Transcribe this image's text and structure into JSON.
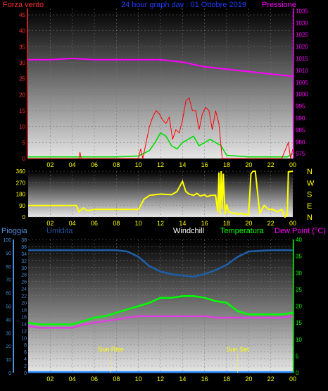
{
  "header": {
    "left_label": "Forza vento",
    "title": "24 hour graph day : 01 Ottobre 2019",
    "right_label": "Pressione"
  },
  "colors": {
    "wind": "#ff0000",
    "gust": "#00dd00",
    "pressure": "#ff00ff",
    "direction": "#ffff00",
    "humidity": "#1f5fa8",
    "temperature": "#00ff00",
    "dewpoint": "#e040e0",
    "rain": "#2f8fff",
    "windchill": "#ffffff",
    "left_axis": "#ff3030",
    "right_axis": "#ff00ff",
    "bottom_left_axis": "#4f8fd8",
    "bottom_right_axis": "#00ff00",
    "text": "#ffff00"
  },
  "x_ticks": [
    "02",
    "04",
    "06",
    "08",
    "10",
    "12",
    "14",
    "16",
    "18",
    "20",
    "22",
    "00"
  ],
  "chart_data": [
    {
      "type": "line",
      "name_hint": "wind-pressure",
      "y_left": {
        "ticks": [
          0,
          5,
          10,
          15,
          20,
          25,
          30,
          35,
          40,
          45
        ],
        "range": [
          0,
          47
        ]
      },
      "y_right": {
        "ticks": [
          975,
          980,
          985,
          990,
          995,
          1000,
          1005,
          1010,
          1015,
          1020,
          1025,
          1030,
          1035
        ],
        "range": [
          973,
          1036
        ]
      },
      "x_range": [
        0,
        24
      ],
      "series": [
        {
          "key": "pressure",
          "axis": "right",
          "x": [
            0,
            2,
            4,
            6,
            8,
            10,
            12,
            14,
            16,
            18,
            20,
            22,
            24
          ],
          "y": [
            1014.5,
            1014.5,
            1015,
            1014.5,
            1014.5,
            1014.5,
            1014.5,
            1013.5,
            1011.5,
            1010.5,
            1009.5,
            1008.5,
            1007.5
          ]
        },
        {
          "key": "gust",
          "axis": "left",
          "x": [
            0,
            4,
            8,
            10,
            11,
            11.5,
            12,
            12.5,
            13,
            13.5,
            14,
            14.5,
            15,
            15.5,
            16,
            16.5,
            17,
            17.5,
            18,
            20,
            22,
            23,
            23.5,
            24
          ],
          "y": [
            0.5,
            0.5,
            0.5,
            0.8,
            2.5,
            5,
            8,
            7,
            4,
            3,
            5,
            6,
            7,
            4,
            5,
            6,
            5,
            4,
            1,
            0.5,
            0.5,
            0.5,
            0.5,
            1.5
          ]
        },
        {
          "key": "wind",
          "axis": "left",
          "x": [
            0,
            4.6,
            4.7,
            4.8,
            8,
            10,
            10.2,
            10.4,
            11,
            11.3,
            11.6,
            11.9,
            12.2,
            12.5,
            12.8,
            13.1,
            13.4,
            13.7,
            14,
            14.3,
            14.6,
            14.9,
            15.2,
            15.5,
            15.8,
            16.1,
            16.4,
            16.7,
            17,
            17.3,
            17.6,
            18,
            20,
            22,
            23,
            23.6,
            23.8,
            24
          ],
          "y": [
            0,
            0,
            2,
            0,
            0,
            0,
            3,
            0,
            10,
            13,
            15,
            14,
            12,
            11,
            13,
            6,
            9,
            8,
            12,
            18,
            19,
            15,
            15,
            9,
            14,
            16,
            15,
            9,
            15,
            11,
            0,
            0,
            0,
            0,
            0,
            5,
            0,
            3
          ]
        }
      ]
    },
    {
      "type": "line",
      "name_hint": "wind-direction",
      "y_left": {
        "ticks": [
          0,
          90,
          180,
          270,
          360
        ],
        "range": [
          0,
          360
        ]
      },
      "compass": [
        "N",
        "W",
        "S",
        "E",
        "N"
      ],
      "x_range": [
        0,
        24
      ],
      "series": [
        {
          "key": "direction",
          "x": [
            0,
            4.4,
            4.6,
            5,
            5.4,
            6,
            10,
            10.2,
            10.5,
            11,
            12,
            13,
            13.5,
            14,
            14.3,
            14.6,
            15,
            15.3,
            15.6,
            16,
            16.2,
            16.6,
            17,
            17.2,
            17.3,
            17.4,
            17.5,
            17.6,
            17.7,
            17.8,
            17.9,
            18,
            18.2,
            18.5,
            18.8,
            19,
            19.3,
            19.6,
            20,
            20.2,
            20.4,
            20.6,
            21,
            21.4,
            21.8,
            22.2,
            22.6,
            23,
            23.3,
            23.5,
            23.6,
            24
          ],
          "y": [
            90,
            90,
            40,
            70,
            50,
            60,
            60,
            90,
            140,
            170,
            180,
            175,
            200,
            280,
            200,
            180,
            170,
            185,
            165,
            175,
            160,
            170,
            170,
            40,
            350,
            20,
            360,
            60,
            340,
            120,
            20,
            100,
            40,
            30,
            30,
            20,
            30,
            20,
            20,
            340,
            360,
            360,
            30,
            90,
            60,
            60,
            40,
            60,
            0,
            20,
            355,
            360
          ]
        }
      ]
    },
    {
      "type": "line",
      "name_hint": "temperature-humidity",
      "y_outer_left": {
        "ticks": [
          0,
          10,
          20,
          30,
          40,
          50,
          60,
          70,
          80,
          90,
          100
        ],
        "range": [
          0,
          100
        ]
      },
      "y_inner_left": {
        "ticks": [
          0,
          2,
          4,
          6,
          8,
          10,
          12,
          14,
          16,
          18,
          20,
          22,
          24,
          26,
          28,
          30,
          32,
          34,
          36,
          38
        ],
        "range": [
          0,
          38
        ]
      },
      "y_right": {
        "ticks": [
          0,
          5,
          10,
          15,
          20,
          25,
          30,
          35,
          40
        ],
        "range": [
          0,
          40
        ]
      },
      "x_range": [
        0,
        24
      ],
      "legend": [
        "Pioggia",
        "Umidita",
        "Windchill",
        "Temperatura",
        "Dew Point (°C)"
      ],
      "annotations": [
        {
          "text": "Sun Rise",
          "x": 7.5
        },
        {
          "text": "Sun Set",
          "x": 19.0
        }
      ],
      "series": [
        {
          "key": "humidity",
          "axis": "outer_left",
          "x": [
            0,
            2,
            4,
            6,
            8,
            9,
            10,
            11,
            12,
            13,
            14,
            15,
            16,
            17,
            18,
            19,
            20,
            22,
            24
          ],
          "y": [
            92,
            92,
            92,
            92,
            92,
            91,
            87,
            80,
            76,
            74,
            73,
            72,
            74,
            77,
            81,
            87,
            91,
            92,
            92
          ]
        },
        {
          "key": "temperature",
          "axis": "right",
          "x": [
            0,
            1,
            2,
            3,
            4,
            5,
            6,
            7,
            8,
            9,
            10,
            11,
            12,
            13,
            14,
            15,
            16,
            17,
            18,
            19,
            20,
            21,
            22,
            23,
            24
          ],
          "y": [
            15,
            14.5,
            14.5,
            14.5,
            14.5,
            15.5,
            16.5,
            17,
            18,
            19,
            20,
            21,
            22.5,
            22.5,
            23,
            23,
            22.5,
            21.5,
            21,
            18.5,
            17.5,
            17.5,
            17.5,
            17.5,
            18
          ]
        },
        {
          "key": "dewpoint",
          "axis": "right",
          "x": [
            0,
            1,
            2,
            3,
            4,
            5,
            6,
            7,
            8,
            9,
            10,
            11,
            12,
            13,
            14,
            15,
            16,
            17,
            18,
            19,
            20,
            21,
            22,
            23,
            24
          ],
          "y": [
            14,
            13.5,
            13.5,
            13.5,
            13.5,
            14.5,
            15,
            15.5,
            16,
            16.5,
            17,
            17,
            17,
            17,
            17,
            17,
            17,
            16.5,
            16.5,
            16.5,
            16.5,
            16.5,
            16.5,
            16.5,
            17
          ]
        },
        {
          "key": "rain",
          "axis": "outer_left",
          "x": [
            0,
            24
          ],
          "y": [
            0.5,
            0.5
          ]
        }
      ]
    }
  ]
}
